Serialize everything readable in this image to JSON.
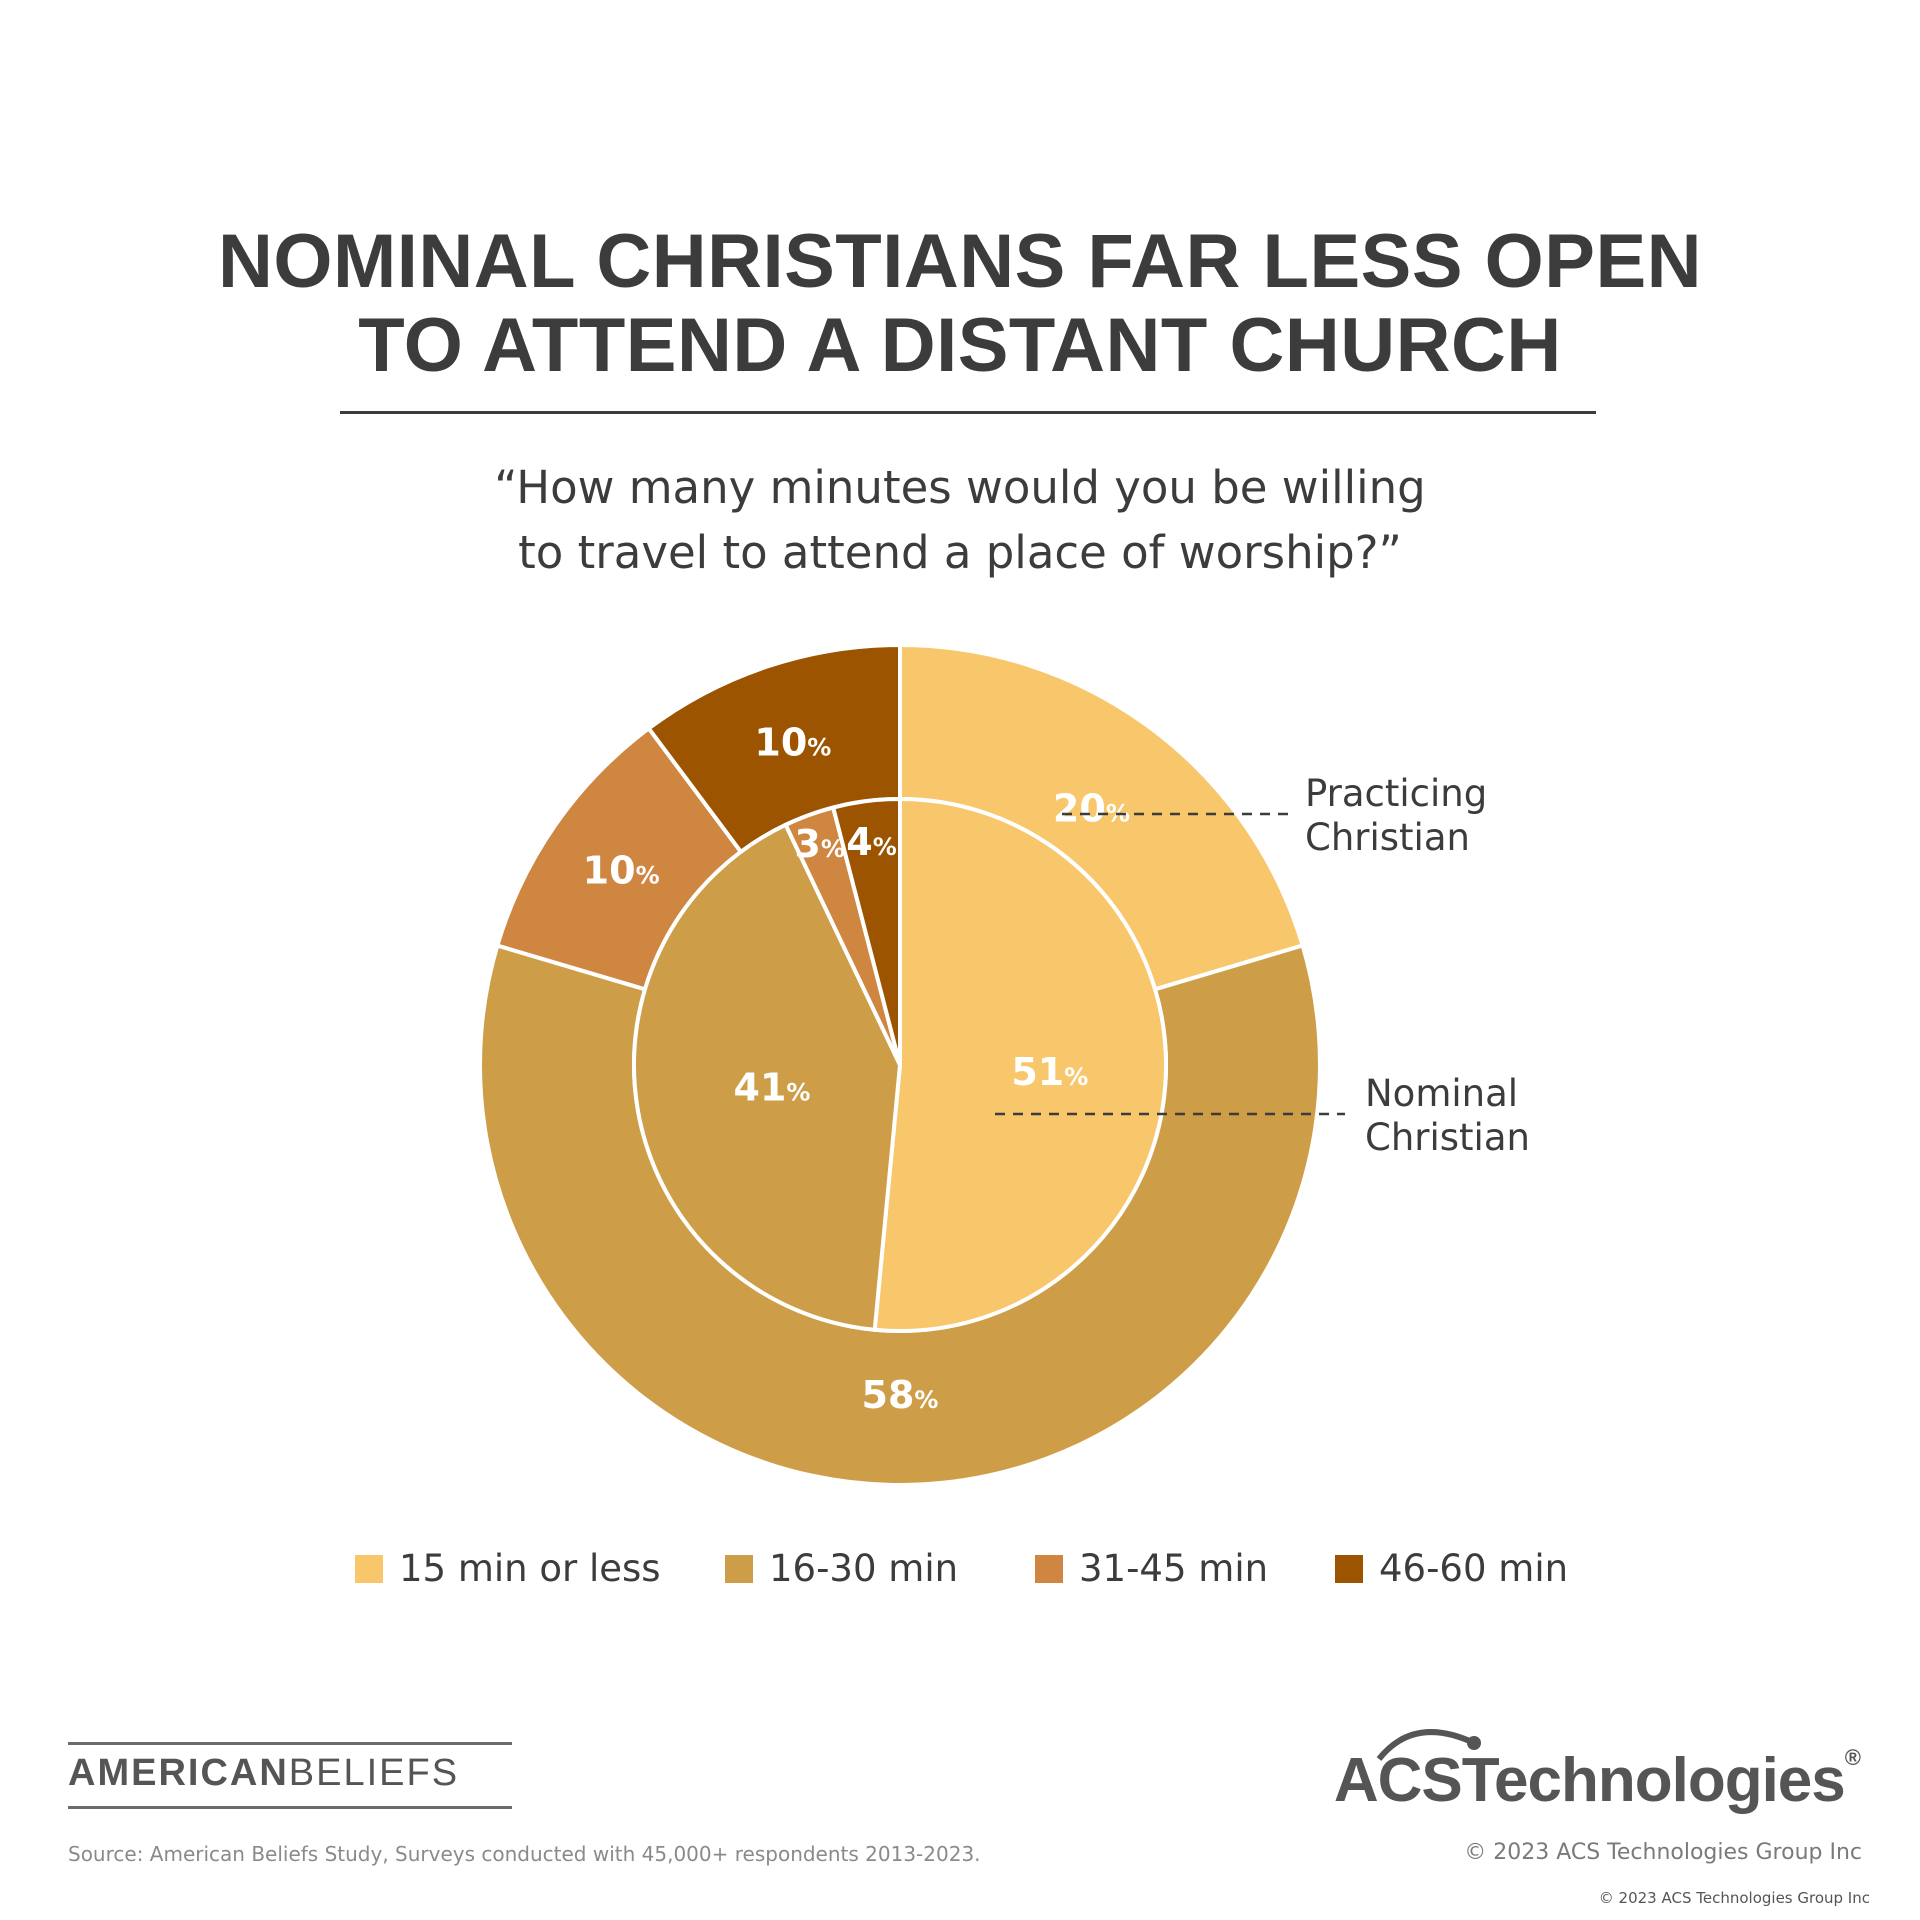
{
  "title_lines": [
    "NOMINAL CHRISTIANS FAR LESS OPEN",
    "TO ATTEND A DISTANT CHURCH"
  ],
  "subtitle_lines": [
    "“How many minutes would you be willing",
    "to travel to attend a place of worship?”"
  ],
  "chart_data": {
    "type": "pie",
    "title": "NOMINAL CHRISTIANS FAR LESS OPEN TO ATTEND A DISTANT CHURCH",
    "categories": [
      "15 min or less",
      "16-30 min",
      "31-45 min",
      "46-60 min"
    ],
    "colors": [
      "#F8C76C",
      "#CE9D48",
      "#CE8641",
      "#9C5400"
    ],
    "series": [
      {
        "name": "Practicing Christian",
        "ring": "outer",
        "values": [
          20,
          58,
          10,
          10
        ]
      },
      {
        "name": "Nominal Christian",
        "ring": "inner",
        "values": [
          51,
          41,
          3,
          4
        ]
      }
    ],
    "value_suffix": "%",
    "legend_position": "bottom"
  },
  "ring_labels": {
    "outer": [
      "Practicing",
      "Christian"
    ],
    "inner": [
      "Nominal",
      "Christian"
    ]
  },
  "brand_left": {
    "bold": "AMERICAN",
    "light": "BELIEFS"
  },
  "brand_right": "ACSTechnologies",
  "brand_right_mark": "®",
  "source": "Source: American Beliefs Study, Surveys conducted with 45,000+ respondents 2013-2023.",
  "copyright_main": "© 2023 ACS Technologies Group Inc",
  "copyright_small": "© 2023 ACS Technologies Group Inc"
}
